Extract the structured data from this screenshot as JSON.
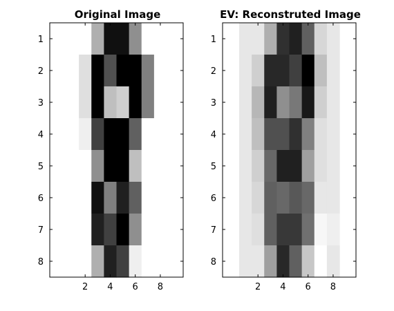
{
  "chart_data": [
    {
      "type": "heatmap",
      "title": "Original Image",
      "colormap": "gray (0 = black, 16 = white)",
      "xlim": [
        0.5,
        8.5
      ],
      "ylim": [
        8.5,
        0.5
      ],
      "x_ticks": [
        2,
        4,
        6,
        8
      ],
      "y_ticks": [
        1,
        2,
        3,
        4,
        5,
        6,
        7,
        8
      ],
      "rows": [
        [
          16,
          16,
          11,
          1,
          1,
          9,
          16,
          16
        ],
        [
          16,
          14,
          0,
          5,
          0,
          0,
          8,
          16
        ],
        [
          16,
          14,
          0,
          12,
          13,
          0,
          8,
          16
        ],
        [
          16,
          15,
          4,
          0,
          0,
          6,
          16,
          16
        ],
        [
          16,
          16,
          9,
          0,
          0,
          12,
          16,
          16
        ],
        [
          16,
          16,
          1,
          8,
          2,
          6,
          16,
          16
        ],
        [
          16,
          16,
          2,
          4,
          0,
          9,
          16,
          16
        ],
        [
          16,
          16,
          11,
          2,
          4,
          15,
          16,
          16
        ]
      ]
    },
    {
      "type": "heatmap",
      "title": "EV: Reconstruted Image",
      "colormap": "gray (0 = black, 16 = white)",
      "xlim": [
        0.5,
        8.5
      ],
      "ylim": [
        8.5,
        0.5
      ],
      "x_ticks": [
        2,
        4,
        6,
        8
      ],
      "y_ticks": [
        1,
        2,
        3,
        4,
        5,
        6,
        7,
        8
      ],
      "rows": [
        [
          14.5,
          14.5,
          11,
          3,
          2,
          6,
          13.5,
          14.5
        ],
        [
          14.5,
          13,
          2.5,
          2.5,
          4,
          0,
          12,
          14.5
        ],
        [
          14.5,
          11.5,
          2,
          9,
          7.5,
          1.5,
          13,
          14.5
        ],
        [
          14.5,
          12,
          5,
          5,
          3,
          8,
          14,
          14.5
        ],
        [
          14.5,
          13,
          6.5,
          2,
          2,
          10,
          14,
          14.5
        ],
        [
          14.5,
          13.5,
          6,
          6.5,
          5.5,
          6.5,
          14.5,
          14.5
        ],
        [
          14.5,
          14,
          6,
          3.5,
          3.5,
          7,
          15.5,
          15
        ],
        [
          14.5,
          14.5,
          10,
          2.5,
          6,
          12.5,
          16,
          14.5
        ]
      ]
    }
  ]
}
